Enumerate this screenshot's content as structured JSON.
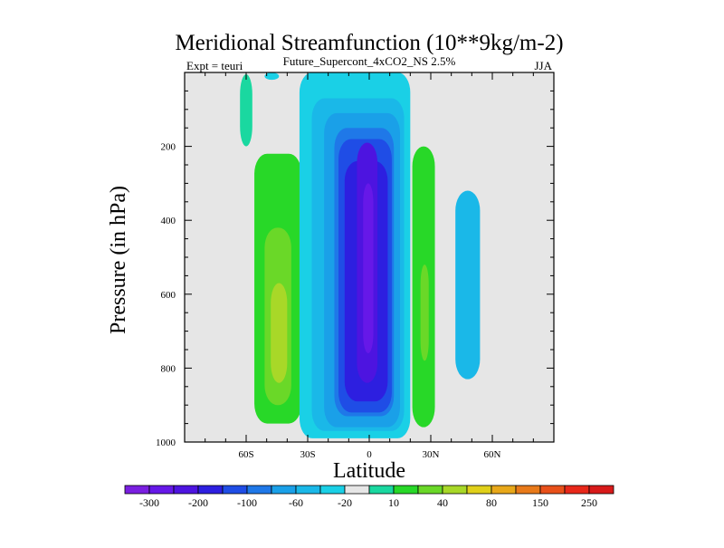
{
  "chart_data": {
    "type": "contour",
    "title": "Meridional Streamfunction (10**9kg/m-2)",
    "subtitle": "Future_Supercont_4xCO2_NS 2.5%",
    "left_label": "Expt = teuri",
    "right_label": "JJA",
    "xlabel": "Latitude",
    "ylabel": "Pressure (in hPa)",
    "xlim": [
      -90,
      90
    ],
    "ylim": [
      1000,
      0
    ],
    "x_ticks": [
      {
        "value": -60,
        "label": "60S"
      },
      {
        "value": -30,
        "label": "30S"
      },
      {
        "value": 0,
        "label": "0"
      },
      {
        "value": 30,
        "label": "30N"
      },
      {
        "value": 60,
        "label": "60N"
      }
    ],
    "y_ticks": [
      {
        "value": 200,
        "label": "200"
      },
      {
        "value": 400,
        "label": "400"
      },
      {
        "value": 600,
        "label": "600"
      },
      {
        "value": 800,
        "label": "800"
      },
      {
        "value": 1000,
        "label": "1000"
      }
    ],
    "colorbar": {
      "colors": [
        "#7a1fe0",
        "#6618e8",
        "#4d14e0",
        "#2d1fe0",
        "#1f4de6",
        "#1f78e8",
        "#1aa0e8",
        "#1ab8e8",
        "#1ad0e6",
        "#e6e6e6",
        "#1ad8a0",
        "#28d828",
        "#6ad828",
        "#a8d828",
        "#e0d01a",
        "#e8a81a",
        "#e87a1a",
        "#e8501a",
        "#e8281a",
        "#d81a1a"
      ],
      "labels": [
        "-300",
        "-200",
        "-100",
        "-60",
        "-20",
        "10",
        "40",
        "80",
        "150",
        "250"
      ]
    },
    "cells": [
      {
        "latmin": -63,
        "latmax": -57,
        "pmin": 5,
        "pmax": 200,
        "level": 10
      },
      {
        "latmin": -51,
        "latmax": -44,
        "pmin": 0,
        "pmax": 20,
        "level": 8
      },
      {
        "latmin": -56,
        "latmax": -33,
        "pmin": 220,
        "pmax": 950,
        "level": 11
      },
      {
        "latmin": -51,
        "latmax": -38,
        "pmin": 420,
        "pmax": 900,
        "level": 12
      },
      {
        "latmin": -48,
        "latmax": -40,
        "pmin": 570,
        "pmax": 840,
        "level": 13
      },
      {
        "latmin": -34,
        "latmax": 20,
        "pmin": 0,
        "pmax": 990,
        "level": 8
      },
      {
        "latmin": -28,
        "latmax": 17,
        "pmin": 70,
        "pmax": 970,
        "level": 7
      },
      {
        "latmin": -22,
        "latmax": 15,
        "pmin": 110,
        "pmax": 960,
        "level": 6
      },
      {
        "latmin": -17,
        "latmax": 12,
        "pmin": 150,
        "pmax": 930,
        "level": 5
      },
      {
        "latmin": -15,
        "latmax": 11,
        "pmin": 180,
        "pmax": 920,
        "level": 4
      },
      {
        "latmin": -12,
        "latmax": 9,
        "pmin": 240,
        "pmax": 890,
        "level": 3
      },
      {
        "latmin": -6,
        "latmax": 4,
        "pmin": 190,
        "pmax": 840,
        "level": 2
      },
      {
        "latmin": -3,
        "latmax": 2,
        "pmin": 300,
        "pmax": 760,
        "level": 1
      },
      {
        "latmin": 21,
        "latmax": 32,
        "pmin": 200,
        "pmax": 960,
        "level": 11
      },
      {
        "latmin": 25,
        "latmax": 29,
        "pmin": 520,
        "pmax": 780,
        "level": 12
      },
      {
        "latmin": 42,
        "latmax": 54,
        "pmin": 320,
        "pmax": 830,
        "level": 7
      }
    ]
  }
}
